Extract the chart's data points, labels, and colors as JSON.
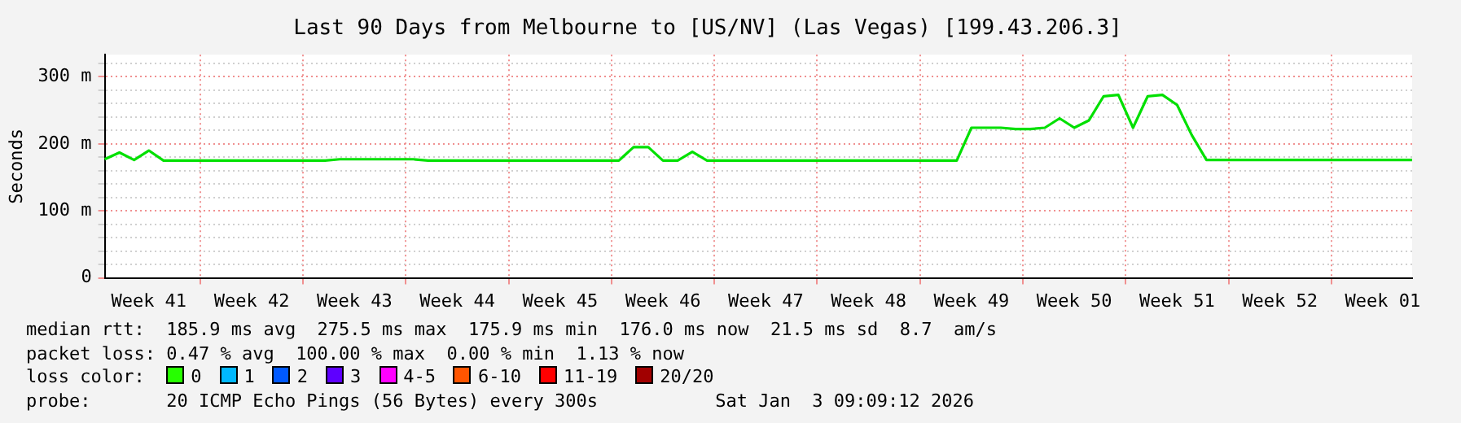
{
  "chart_data": {
    "type": "line",
    "title": "Last 90 Days from Melbourne to [US/NV] (Las Vegas) [199.43.206.3]",
    "ylabel": "Seconds",
    "categories": [
      null,
      null,
      null,
      "Week 41",
      null,
      null,
      null,
      null,
      null,
      null,
      "Week 42",
      null,
      null,
      null,
      null,
      null,
      null,
      "Week 43",
      null,
      null,
      null,
      null,
      null,
      null,
      "Week 44",
      null,
      null,
      null,
      null,
      null,
      null,
      "Week 45",
      null,
      null,
      null,
      null,
      null,
      null,
      "Week 46",
      null,
      null,
      null,
      null,
      null,
      null,
      "Week 47",
      null,
      null,
      null,
      null,
      null,
      null,
      "Week 48",
      null,
      null,
      null,
      null,
      null,
      null,
      "Week 49",
      null,
      null,
      null,
      null,
      null,
      null,
      "Week 50",
      null,
      null,
      null,
      null,
      null,
      null,
      "Week 51",
      null,
      null,
      null,
      null,
      null,
      null,
      "Week 52",
      null,
      null,
      null,
      null,
      null,
      null,
      "Week 01",
      null,
      null
    ],
    "series": [
      {
        "color": "#00e000",
        "values": [
          177,
          187,
          176,
          190,
          175,
          175,
          175,
          175,
          175,
          175,
          175,
          175,
          175,
          175,
          175,
          175,
          177,
          177,
          177,
          177,
          177,
          177,
          175,
          175,
          175,
          175,
          175,
          175,
          175,
          175,
          175,
          175,
          175,
          175,
          175,
          175,
          195,
          195,
          175,
          175,
          188,
          175,
          175,
          175,
          175,
          175,
          175,
          175,
          175,
          175,
          175,
          175,
          175,
          175,
          175,
          175,
          175,
          175,
          175,
          224,
          224,
          224,
          222,
          222,
          224,
          238,
          224,
          235,
          271,
          273,
          224,
          271,
          273,
          258,
          213,
          176,
          176,
          176,
          176,
          176,
          176,
          176,
          176,
          176,
          176,
          176,
          176,
          176,
          176,
          176
        ]
      }
    ],
    "ylim": [
      0,
      333
    ],
    "yticks": [
      {
        "value": 0,
        "label": "0"
      },
      {
        "value": 20,
        "label": null
      },
      {
        "value": 40,
        "label": null
      },
      {
        "value": 60,
        "label": null
      },
      {
        "value": 80,
        "label": null
      },
      {
        "value": 100,
        "label": "100 m"
      },
      {
        "value": 120,
        "label": null
      },
      {
        "value": 140,
        "label": null
      },
      {
        "value": 160,
        "label": null
      },
      {
        "value": 180,
        "label": null
      },
      {
        "value": 200,
        "label": "200 m"
      },
      {
        "value": 220,
        "label": null
      },
      {
        "value": 240,
        "label": null
      },
      {
        "value": 260,
        "label": null
      },
      {
        "value": 280,
        "label": null
      },
      {
        "value": 300,
        "label": "300 m"
      },
      {
        "value": 320,
        "label": null
      }
    ],
    "grid": true,
    "marker": "none",
    "line_style": "solid",
    "annotations": [
      "median rtt:  185.9 ms avg  275.5 ms max  175.9 ms min  176.0 ms now  21.5 ms sd  8.7  am/s",
      "packet loss: 0.47 % avg  100.00 % max  0.00 % min  1.13 % now",
      "loss color:",
      "0",
      "1",
      "2",
      "3",
      "4-5",
      "6-10",
      "11-19",
      "20/20",
      "probe:       20 ICMP Echo Pings (56 Bytes) every 300s",
      "Sat Jan  3 09:09:12 2026"
    ]
  }
}
